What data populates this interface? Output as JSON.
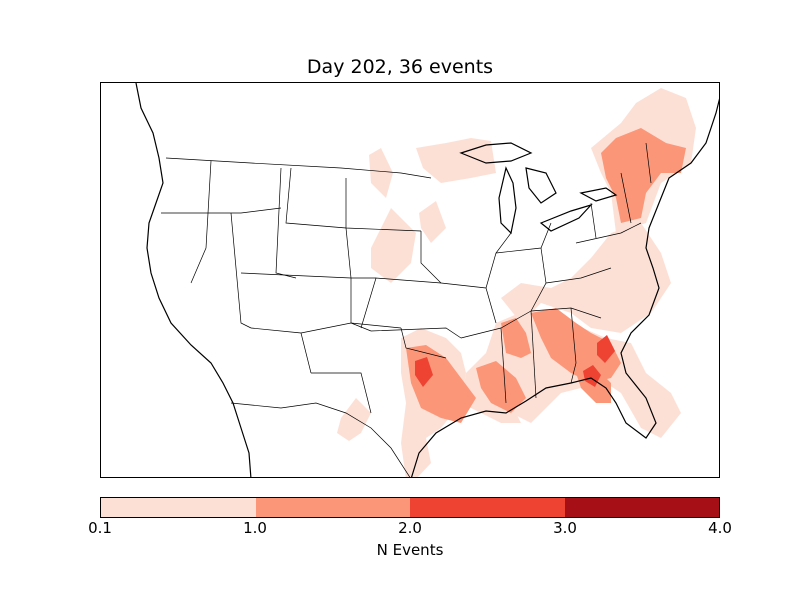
{
  "title": "Day 202, 36 events",
  "colorbar": {
    "label": "N Events",
    "ticks": [
      "0.1",
      "1.0",
      "2.0",
      "3.0",
      "4.0"
    ],
    "levels": [
      {
        "range": "0.1-1.0",
        "color": "#fde0d5"
      },
      {
        "range": "1.0-2.0",
        "color": "#fc9678"
      },
      {
        "range": "2.0-3.0",
        "color": "#ee4333"
      },
      {
        "range": "3.0-4.0",
        "color": "#a70f16"
      }
    ]
  },
  "map": {
    "region": "Continental United States",
    "projection": "lambert-conformal",
    "fill_colors": {
      "low": "#fde0d5",
      "mid": "#fc9678",
      "high": "#ee4333"
    }
  }
}
